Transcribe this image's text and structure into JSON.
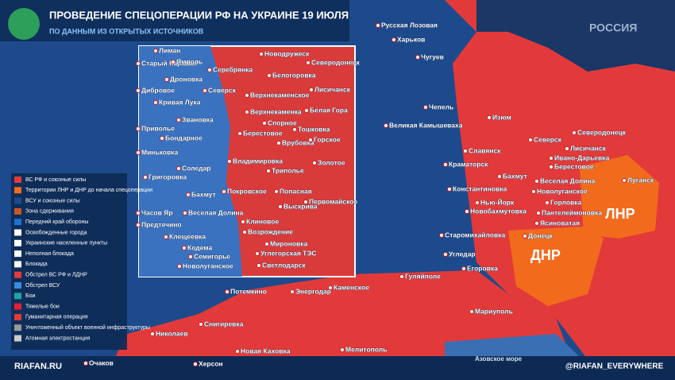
{
  "header": {
    "title": "ПРОВЕДЕНИЕ СПЕЦОПЕРАЦИИ РФ НА УКРАИНЕ 19 ИЮЛЯ",
    "subtitle": "ПО ДАННЫМ ИЗ ОТКРЫТЫХ ИСТОЧНИКОВ",
    "country": "РОССИЯ"
  },
  "legend": {
    "items": [
      "ВС РФ и союзные силы",
      "Территории ЛНР и ДНР до начала спецоперации",
      "ВСУ и союзные силы",
      "Зона сдерживания",
      "Передний край обороны",
      "Освобожденные города",
      "Украинские населенные пункты",
      "Неполная блокада",
      "Блокада",
      "Обстрел ВС РФ и ЛДНР",
      "Обстрел ВСУ",
      "Бои",
      "Тяжелые бои",
      "Гуманитарная операция",
      "Уничтоженный объект военной инфраструктуры",
      "Атомная электростанция"
    ]
  },
  "map": {
    "labels": [
      "Русская Лозовая",
      "Харьков",
      "Чугуев",
      "Чепель",
      "Изюм",
      "Великая Камышеваха",
      "Славянск",
      "Краматорск",
      "Северск",
      "Лисичанск",
      "Северодонецк",
      "Ивано-Дарьевка",
      "Берестовое",
      "Бахмут",
      "Веселая Долина",
      "Новолуганское",
      "Луганск",
      "Константиновка",
      "Нью-Йорк",
      "Новобахмутовка",
      "Горловка",
      "Пантелеймоновка",
      "Ясиноватая",
      "Старомихайловка",
      "Донецк",
      "Угледар",
      "Егоровка",
      "Гуляйполе",
      "Каменское",
      "Энергодар",
      "Потемкино",
      "Мариуполь",
      "Николаев",
      "Снигиревка",
      "Херсон",
      "Новая Каховка",
      "Мелитополь",
      "Очаков"
    ],
    "regions": [
      "ЛНР",
      "ДНР"
    ],
    "sea": "Азовское море"
  },
  "inset": {
    "labels": [
      "Лиман",
      "Новодружеск",
      "Северодонецк",
      "Старый Караван",
      "Ямполь",
      "Серебрянка",
      "Белогоровка",
      "Лисичанск",
      "Дроновка",
      "Дибровое",
      "Северск",
      "Верхнекаменское",
      "Кривая Лука",
      "Белая Гора",
      "Звановка",
      "Верхнекаменка",
      "Спорное",
      "Тошковка",
      "Приволье",
      "Берестовое",
      "Бондарное",
      "Врубовка",
      "Горское",
      "Миньковка",
      "Владимировка",
      "Золотое",
      "Григоровка",
      "Соледар",
      "Триполье",
      "Покровское",
      "Попасная",
      "Бахмут",
      "Первомайское",
      "Часов Яр",
      "Веселая Долина",
      "Выскрива",
      "Клиновое",
      "Предтечино",
      "Клещеевка",
      "Возрождение",
      "Кодема",
      "Мироновка",
      "Семигорье",
      "Углегорская ТЭС",
      "Новолуганское",
      "Светлодарск"
    ]
  },
  "footer": {
    "site": "RIAFAN.RU",
    "handle": "@RIAFAN_EVERYWHERE"
  }
}
